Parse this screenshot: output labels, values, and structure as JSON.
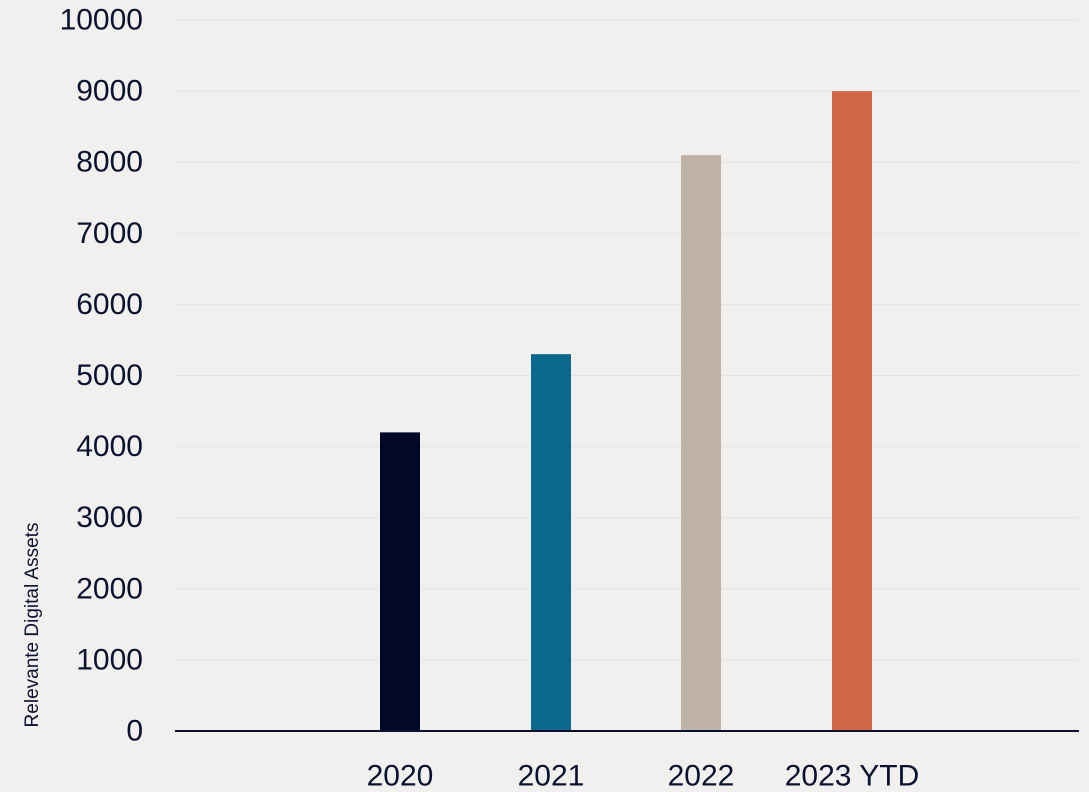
{
  "chart_data": {
    "type": "bar",
    "categories": [
      "2020",
      "2021",
      "2022",
      "2023 YTD"
    ],
    "values": [
      4200,
      5300,
      8100,
      9000
    ],
    "colors": [
      "#030826",
      "#0b688d",
      "#bfb3a7",
      "#d06645"
    ],
    "ylabel": "Relevante Digital Assets",
    "xlabel": "",
    "ylim": [
      0,
      10000
    ],
    "yticks": [
      0,
      1000,
      2000,
      3000,
      4000,
      5000,
      6000,
      7000,
      8000,
      9000,
      10000
    ],
    "ytick_labels": [
      "0",
      "1000",
      "2000",
      "3000",
      "4000",
      "5000",
      "6000",
      "7000",
      "8000",
      "9000",
      "10000"
    ],
    "grid": true,
    "legend": "none"
  }
}
